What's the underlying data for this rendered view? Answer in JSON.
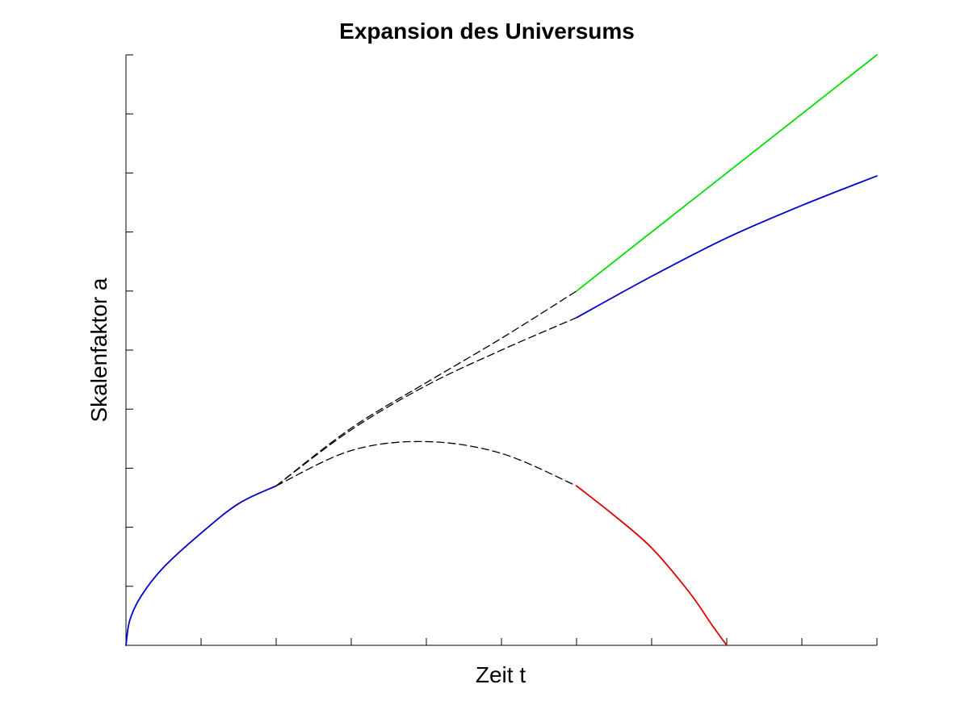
{
  "chart_data": {
    "type": "line",
    "title": "Expansion des Universums",
    "xlabel": "Zeit t",
    "ylabel": "Skalenfaktor a",
    "xlim": [
      0,
      10
    ],
    "ylim": [
      0,
      10
    ],
    "x_ticks": [
      0,
      1,
      2,
      3,
      4,
      5,
      6,
      7,
      8,
      9,
      10
    ],
    "y_ticks": [
      0,
      1,
      2,
      3,
      4,
      5,
      6,
      7,
      8,
      9,
      10
    ],
    "tick_labels_shown": false,
    "grid": false,
    "legend": "none",
    "series": [
      {
        "color": "#0000cc",
        "style": "solid",
        "x": [
          0,
          0.05,
          0.2,
          0.5,
          1.0,
          1.5,
          2.0
        ],
        "y": [
          0,
          0.42,
          0.83,
          1.32,
          1.9,
          2.4,
          2.7
        ]
      },
      {
        "color": "#000000",
        "style": "dashed",
        "x": [
          2.0,
          3.0,
          4.0,
          5.0,
          6.0
        ],
        "y": [
          2.7,
          3.65,
          4.4,
          5.0,
          5.55
        ]
      },
      {
        "color": "#000000",
        "style": "dashed",
        "x": [
          2.0,
          3.0,
          4.0,
          5.0,
          6.0
        ],
        "y": [
          2.7,
          3.68,
          4.45,
          5.2,
          6.0
        ]
      },
      {
        "color": "#000000",
        "style": "dashed",
        "x": [
          2.0,
          3.0,
          4.0,
          5.0,
          6.0
        ],
        "y": [
          2.7,
          3.3,
          3.45,
          3.25,
          2.7
        ]
      },
      {
        "color": "#0000cc",
        "style": "solid",
        "x": [
          6.0,
          7.0,
          8.0,
          9.0,
          10.0
        ],
        "y": [
          5.55,
          6.25,
          6.9,
          7.45,
          7.95
        ]
      },
      {
        "color": "#00dd00",
        "style": "solid",
        "x": [
          6.0,
          8.0,
          10.0
        ],
        "y": [
          6.0,
          8.0,
          10.0
        ]
      },
      {
        "color": "#dd0000",
        "style": "solid",
        "x": [
          6.0,
          6.5,
          7.0,
          7.5,
          7.8,
          8.0
        ],
        "y": [
          2.7,
          2.2,
          1.65,
          0.9,
          0.35,
          0
        ]
      }
    ]
  }
}
